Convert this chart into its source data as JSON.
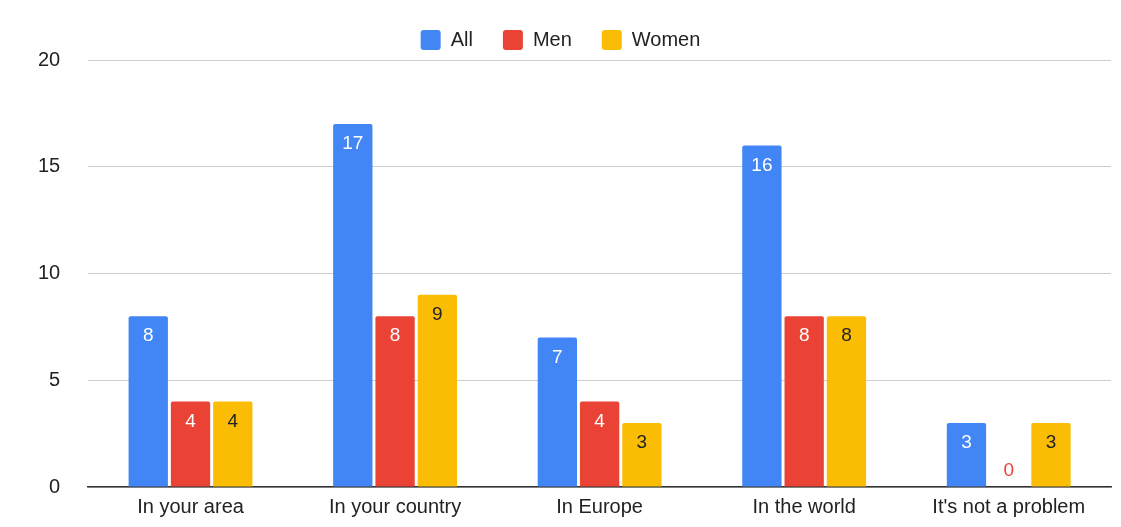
{
  "chart_data": {
    "type": "bar",
    "categories": [
      "In your area",
      "In your country",
      "In Europe",
      "In the world",
      "It's not a problem"
    ],
    "series": [
      {
        "name": "All",
        "color": "#4285f4",
        "values": [
          8,
          17,
          7,
          16,
          3
        ]
      },
      {
        "name": "Men",
        "color": "#ea4335",
        "values": [
          4,
          8,
          4,
          8,
          0
        ]
      },
      {
        "name": "Women",
        "color": "#fbbc04",
        "values": [
          4,
          9,
          3,
          8,
          3
        ]
      }
    ],
    "ylim": [
      0,
      20
    ],
    "yticks": [
      0,
      5,
      10,
      15,
      20
    ],
    "grid": "y",
    "legend": "top",
    "data_labels": true
  }
}
